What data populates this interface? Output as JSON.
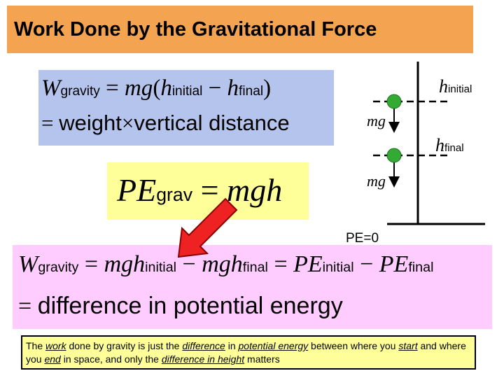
{
  "title": "Work Done by the Gravitational Force",
  "equation_box": {
    "line1": [
      {
        "text": "W",
        "style": "i"
      },
      {
        "text": "gravity",
        "style": "sub"
      },
      {
        "text": " = ",
        "style": "r"
      },
      {
        "text": "mg",
        "style": "i"
      },
      {
        "text": "(",
        "style": "r"
      },
      {
        "text": "h",
        "style": "i"
      },
      {
        "text": "initial",
        "style": "sub"
      },
      {
        "text": " − ",
        "style": "r"
      },
      {
        "text": "h",
        "style": "i"
      },
      {
        "text": "final",
        "style": "sub"
      },
      {
        "text": ")",
        "style": "r"
      }
    ],
    "line2": [
      {
        "text": "= ",
        "style": "r"
      },
      {
        "text": "weight",
        "style": "sans"
      },
      {
        "text": "×",
        "style": "r"
      },
      {
        "text": "vertical distance",
        "style": "sans"
      }
    ]
  },
  "pe_box": {
    "line1": [
      {
        "text": "PE",
        "style": "i"
      },
      {
        "text": "grav",
        "style": "sub"
      },
      {
        "text": " = ",
        "style": "r"
      },
      {
        "text": "mgh",
        "style": "i"
      }
    ]
  },
  "result_box": {
    "line1": [
      {
        "text": "W",
        "style": "i"
      },
      {
        "text": "gravity",
        "style": "sub"
      },
      {
        "text": " = ",
        "style": "r"
      },
      {
        "text": "mgh",
        "style": "i"
      },
      {
        "text": "initial",
        "style": "sub"
      },
      {
        "text": " − ",
        "style": "r"
      },
      {
        "text": "mgh",
        "style": "i"
      },
      {
        "text": "final",
        "style": "sub"
      },
      {
        "text": " = ",
        "style": "r"
      },
      {
        "text": "PE",
        "style": "i"
      },
      {
        "text": "initial",
        "style": "sub"
      },
      {
        "text": " − ",
        "style": "r"
      },
      {
        "text": "PE",
        "style": "i"
      },
      {
        "text": "final",
        "style": "sub"
      }
    ],
    "line2": [
      {
        "text": "= ",
        "style": "r"
      },
      {
        "text": "difference in potential energy",
        "style": "sans"
      }
    ]
  },
  "diagram": {
    "h_initial": [
      {
        "text": "h",
        "style": "i"
      },
      {
        "text": "initial",
        "style": "sub"
      }
    ],
    "mg_top": [
      {
        "text": "mg",
        "style": "i"
      }
    ],
    "h_final": [
      {
        "text": "h",
        "style": "i"
      },
      {
        "text": "final",
        "style": "sub"
      }
    ],
    "mg_bottom": [
      {
        "text": "mg",
        "style": "i"
      }
    ],
    "ground_label": "PE=0"
  },
  "note": [
    {
      "text": "The ",
      "underline": false
    },
    {
      "text": "work",
      "underline": true
    },
    {
      "text": " done by gravity is just the ",
      "underline": false
    },
    {
      "text": "difference",
      "underline": true
    },
    {
      "text": " in ",
      "underline": false
    },
    {
      "text": "potential energy",
      "underline": true
    },
    {
      "text": " between where you ",
      "underline": false
    },
    {
      "text": "start",
      "underline": true
    },
    {
      "text": " and where you ",
      "underline": false
    },
    {
      "text": "end",
      "underline": true
    },
    {
      "text": " in space, and only the ",
      "underline": false
    },
    {
      "text": "difference in height",
      "underline": true
    },
    {
      "text": " matters",
      "underline": false
    }
  ]
}
